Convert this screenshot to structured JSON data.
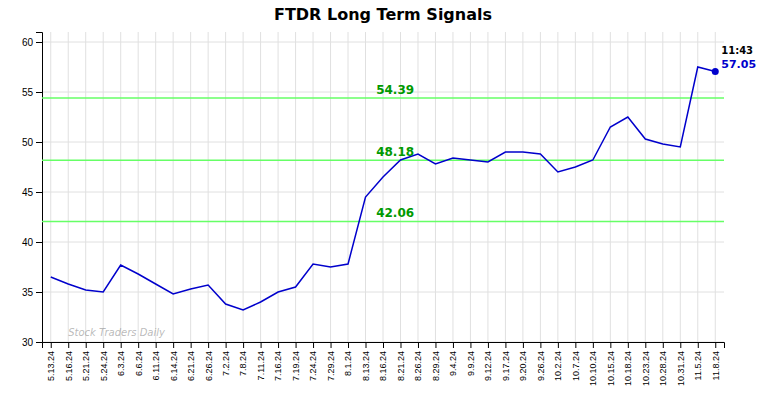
{
  "chart_data": {
    "type": "line",
    "title": "FTDR Long Term Signals",
    "categories": [
      "5.13.24",
      "5.16.24",
      "5.21.24",
      "5.24.24",
      "6.3.24",
      "6.6.24",
      "6.11.24",
      "6.14.24",
      "6.21.24",
      "6.26.24",
      "7.2.24",
      "7.8.24",
      "7.11.24",
      "7.16.24",
      "7.19.24",
      "7.24.24",
      "7.29.24",
      "8.1.24",
      "8.13.24",
      "8.16.24",
      "8.21.24",
      "8.26.24",
      "8.29.24",
      "9.4.24",
      "9.9.24",
      "9.12.24",
      "9.17.24",
      "9.20.24",
      "9.26.24",
      "10.2.24",
      "10.7.24",
      "10.10.24",
      "10.15.24",
      "10.18.24",
      "10.23.24",
      "10.28.24",
      "10.31.24",
      "11.5.24",
      "11.8.24"
    ],
    "values": [
      36.5,
      35.8,
      35.2,
      35.0,
      37.7,
      36.8,
      35.8,
      34.8,
      35.3,
      35.7,
      33.8,
      33.2,
      34.0,
      35.0,
      35.5,
      37.8,
      37.5,
      37.8,
      44.5,
      46.5,
      48.2,
      48.8,
      47.8,
      48.4,
      48.2,
      48.0,
      49.0,
      49.0,
      48.8,
      47.0,
      47.5,
      48.2,
      51.5,
      52.5,
      50.3,
      49.8,
      49.5,
      57.5,
      57.05
    ],
    "color": "#0000cc",
    "marker": "last",
    "hlines": [
      {
        "value": 42.06,
        "label": "42.06"
      },
      {
        "value": 48.18,
        "label": "48.18"
      },
      {
        "value": 54.39,
        "label": "54.39"
      }
    ],
    "hline_color": "#66ff66",
    "hline_label_color": "#009900",
    "annotations": [
      {
        "text": "11:43",
        "color": "#000000"
      },
      {
        "text": "57.05",
        "color": "#0000cc"
      },
      {
        "text": "Stock Traders Daily",
        "color": "#808080"
      }
    ],
    "ylim": [
      30,
      61
    ],
    "yticks": [
      30,
      35,
      40,
      45,
      50,
      55,
      60
    ],
    "grid": true
  }
}
